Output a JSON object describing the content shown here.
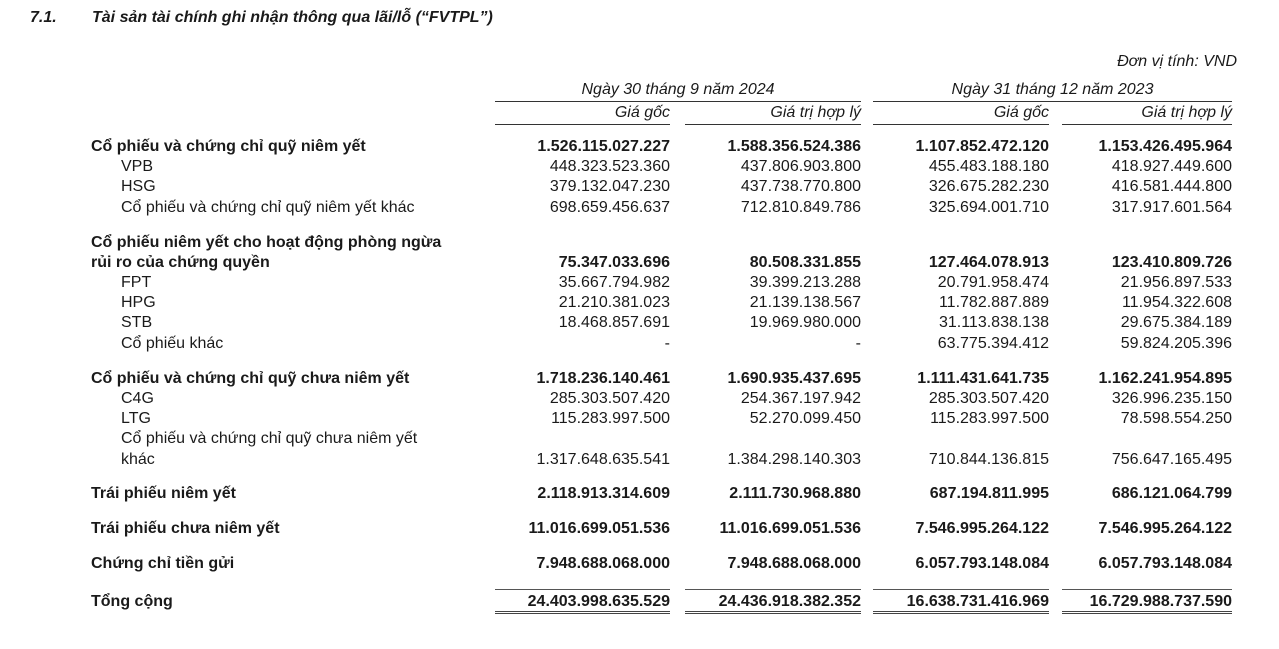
{
  "section": {
    "number": "7.1.",
    "title": "Tài sản tài chính ghi nhận thông qua lãi/lỗ (“FVTPL”)"
  },
  "unit": "Đơn vị tính: VND",
  "header": {
    "groups": [
      "Ngày 30 tháng 9 năm 2024",
      "Ngày 31 tháng 12 năm 2023"
    ],
    "columns": [
      "Giá gốc",
      "Giá trị hợp lý",
      "Giá gốc",
      "Giá trị hợp lý"
    ]
  },
  "rows": [
    {
      "label": "Cổ phiếu và chứng chỉ quỹ niêm yết",
      "bold": true,
      "values": [
        "1.526.115.027.227",
        "1.588.356.524.386",
        "1.107.852.472.120",
        "1.153.426.495.964"
      ]
    },
    {
      "label": "VPB",
      "values": [
        "448.323.523.360",
        "437.806.903.800",
        "455.483.188.180",
        "418.927.449.600"
      ]
    },
    {
      "label": "HSG",
      "values": [
        "379.132.047.230",
        "437.738.770.800",
        "326.675.282.230",
        "416.581.444.800"
      ]
    },
    {
      "label": "Cổ phiếu và chứng chỉ quỹ niêm yết khác",
      "values": [
        "698.659.456.637",
        "712.810.849.786",
        "325.694.001.710",
        "317.917.601.564"
      ]
    },
    {
      "label": "Cổ phiếu niêm yết cho hoạt động phòng ngừa",
      "bold": true,
      "values": [
        "",
        "",
        "",
        ""
      ]
    },
    {
      "label": "rủi ro của chứng quyền",
      "bold": true,
      "values": [
        "75.347.033.696",
        "80.508.331.855",
        "127.464.078.913",
        "123.410.809.726"
      ]
    },
    {
      "label": "FPT",
      "values": [
        "35.667.794.982",
        "39.399.213.288",
        "20.791.958.474",
        "21.956.897.533"
      ]
    },
    {
      "label": "HPG",
      "values": [
        "21.210.381.023",
        "21.139.138.567",
        "11.782.887.889",
        "11.954.322.608"
      ]
    },
    {
      "label": "STB",
      "values": [
        "18.468.857.691",
        "19.969.980.000",
        "31.113.838.138",
        "29.675.384.189"
      ]
    },
    {
      "label": "Cổ phiếu khác",
      "values": [
        "-",
        "-",
        "63.775.394.412",
        "59.824.205.396"
      ]
    },
    {
      "label": "Cổ phiếu và chứng chỉ quỹ chưa niêm yết",
      "bold": true,
      "values": [
        "1.718.236.140.461",
        "1.690.935.437.695",
        "1.111.431.641.735",
        "1.162.241.954.895"
      ]
    },
    {
      "label": "C4G",
      "values": [
        "285.303.507.420",
        "254.367.197.942",
        "285.303.507.420",
        "326.996.235.150"
      ]
    },
    {
      "label": "LTG",
      "values": [
        "115.283.997.500",
        "52.270.099.450",
        "115.283.997.500",
        "78.598.554.250"
      ]
    },
    {
      "label": "Cổ phiếu và chứng chỉ quỹ chưa niêm yết",
      "values": [
        "",
        "",
        "",
        ""
      ]
    },
    {
      "label": "khác",
      "values": [
        "1.317.648.635.541",
        "1.384.298.140.303",
        "710.844.136.815",
        "756.647.165.495"
      ]
    },
    {
      "label": "Trái phiếu niêm yết",
      "bold": true,
      "values": [
        "2.118.913.314.609",
        "2.111.730.968.880",
        "687.194.811.995",
        "686.121.064.799"
      ]
    },
    {
      "label": "Trái phiếu chưa niêm yết",
      "bold": true,
      "values": [
        "11.016.699.051.536",
        "11.016.699.051.536",
        "7.546.995.264.122",
        "7.546.995.264.122"
      ]
    },
    {
      "label": "Chứng chỉ tiền gửi",
      "bold": true,
      "values": [
        "7.948.688.068.000",
        "7.948.688.068.000",
        "6.057.793.148.084",
        "6.057.793.148.084"
      ]
    },
    {
      "label": "Tổng cộng",
      "bold": true,
      "total": true,
      "values": [
        "24.403.998.635.529",
        "24.436.918.382.352",
        "16.638.731.416.969",
        "16.729.988.737.590"
      ]
    }
  ]
}
